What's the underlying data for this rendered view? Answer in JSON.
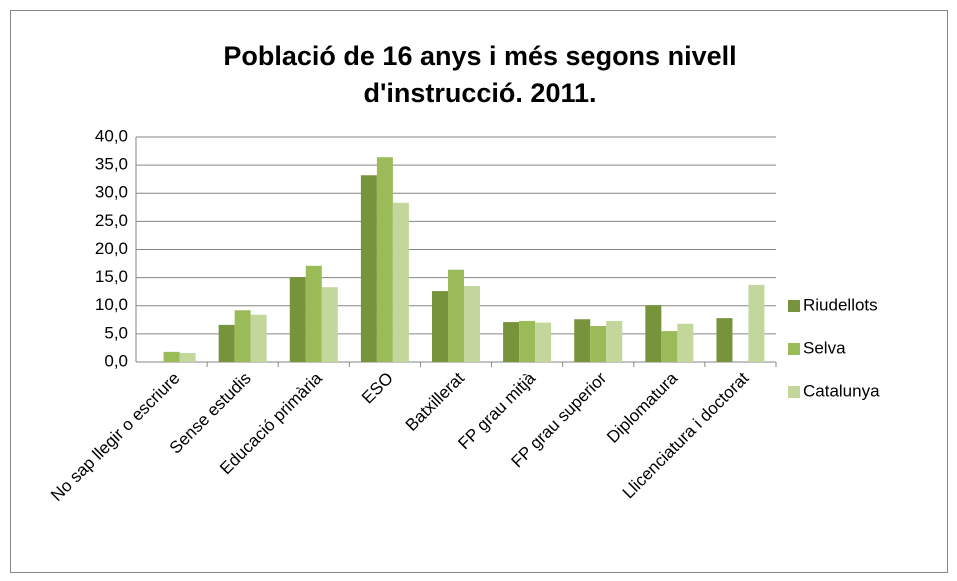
{
  "chart_data": {
    "type": "bar",
    "title": "Població de 16 anys i més segons nivell d'instrucció. 2011.",
    "categories": [
      "No sap llegir o escriure",
      "Sense estudis",
      "Educació primària",
      "ESO",
      "Batxillerat",
      "FP grau mitjà",
      "FP grau superior",
      "Diplomatura",
      "Llicenciatura i doctorat"
    ],
    "series": [
      {
        "name": "Riudellots",
        "color": "#77933c",
        "values": [
          0,
          6.6,
          15.1,
          33.2,
          12.6,
          7.1,
          7.6,
          10.1,
          7.8
        ]
      },
      {
        "name": "Selva",
        "color": "#9bbb59",
        "values": [
          1.8,
          9.2,
          17.1,
          36.4,
          16.4,
          7.3,
          6.4,
          5.5,
          0
        ]
      },
      {
        "name": "Catalunya",
        "color": "#c3d69b",
        "values": [
          1.6,
          8.4,
          13.3,
          28.3,
          13.5,
          7.0,
          7.3,
          6.8,
          13.7
        ]
      }
    ],
    "ylim": [
      0,
      40
    ],
    "yticks": [
      {
        "value": 0,
        "label": "0,0"
      },
      {
        "value": 5,
        "label": "5,0"
      },
      {
        "value": 10,
        "label": "10,0"
      },
      {
        "value": 15,
        "label": "15,0"
      },
      {
        "value": 20,
        "label": "20,0"
      },
      {
        "value": 25,
        "label": "25,0"
      },
      {
        "value": 30,
        "label": "30,0"
      },
      {
        "value": 35,
        "label": "35,0"
      },
      {
        "value": 40,
        "label": "40,0"
      }
    ],
    "grid": true,
    "legend": "right"
  }
}
